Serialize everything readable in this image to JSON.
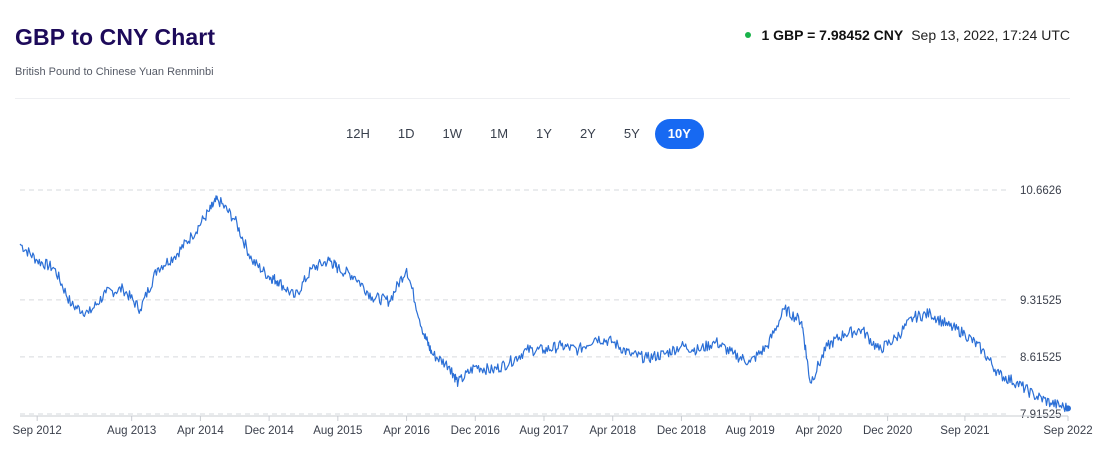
{
  "header": {
    "title": "GBP to CNY Chart",
    "subtitle": "British Pound to Chinese Yuan Renminbi",
    "rate": "1 GBP = 7.98452 CNY",
    "timestamp": "Sep 13, 2022, 17:24 UTC",
    "live_color": "#19b34a"
  },
  "range_tabs": [
    {
      "label": "12H",
      "active": false
    },
    {
      "label": "1D",
      "active": false
    },
    {
      "label": "1W",
      "active": false
    },
    {
      "label": "1M",
      "active": false
    },
    {
      "label": "1Y",
      "active": false
    },
    {
      "label": "2Y",
      "active": false
    },
    {
      "label": "5Y",
      "active": false
    },
    {
      "label": "10Y",
      "active": true
    }
  ],
  "chart_data": {
    "type": "line",
    "line_color": "#2b6fd6",
    "y_ticks": [
      "10.6626",
      "9.31525",
      "8.61525",
      "7.91525"
    ],
    "y_tick_values": [
      10.6626,
      9.31525,
      8.61525,
      7.91525
    ],
    "ylim": [
      7.91525,
      10.6626
    ],
    "grid": true,
    "x_tick_labels": [
      "Sep 2012",
      "Aug 2013",
      "Apr 2014",
      "Dec 2014",
      "Aug 2015",
      "Apr 2016",
      "Dec 2016",
      "Aug 2017",
      "Apr 2018",
      "Dec 2018",
      "Aug 2019",
      "Apr 2020",
      "Dec 2020",
      "Sep 2021",
      "Sep 2022"
    ],
    "x_tick_dates": [
      "2012-09",
      "2013-08",
      "2014-04",
      "2014-12",
      "2015-08",
      "2016-04",
      "2016-12",
      "2017-08",
      "2018-04",
      "2018-12",
      "2019-08",
      "2020-04",
      "2020-12",
      "2021-09",
      "2022-09"
    ],
    "x": [
      "2012-07",
      "2012-09",
      "2012-11",
      "2013-01",
      "2013-03",
      "2013-05",
      "2013-07",
      "2013-09",
      "2013-11",
      "2014-01",
      "2014-03",
      "2014-05",
      "2014-06",
      "2014-08",
      "2014-10",
      "2014-12",
      "2015-01",
      "2015-03",
      "2015-05",
      "2015-07",
      "2015-08",
      "2015-10",
      "2015-12",
      "2016-02",
      "2016-04",
      "2016-06",
      "2016-07",
      "2016-09",
      "2016-10",
      "2016-12",
      "2017-02",
      "2017-04",
      "2017-06",
      "2017-08",
      "2017-10",
      "2017-12",
      "2018-02",
      "2018-04",
      "2018-06",
      "2018-08",
      "2018-10",
      "2018-12",
      "2019-02",
      "2019-04",
      "2019-06",
      "2019-08",
      "2019-10",
      "2019-12",
      "2020-02",
      "2020-03",
      "2020-05",
      "2020-07",
      "2020-09",
      "2020-11",
      "2021-01",
      "2021-03",
      "2021-05",
      "2021-07",
      "2021-09",
      "2021-11",
      "2022-01",
      "2022-03",
      "2022-05",
      "2022-07",
      "2022-09"
    ],
    "values": [
      10.0,
      9.8,
      9.7,
      9.25,
      9.15,
      9.4,
      9.45,
      9.2,
      9.7,
      9.85,
      10.1,
      10.4,
      10.55,
      10.3,
      9.8,
      9.6,
      9.55,
      9.35,
      9.7,
      9.8,
      9.7,
      9.6,
      9.35,
      9.3,
      9.7,
      8.9,
      8.65,
      8.5,
      8.3,
      8.5,
      8.45,
      8.55,
      8.7,
      8.7,
      8.75,
      8.7,
      8.85,
      8.8,
      8.65,
      8.6,
      8.65,
      8.75,
      8.7,
      8.8,
      8.65,
      8.55,
      8.75,
      9.2,
      9.05,
      8.3,
      8.75,
      8.9,
      8.95,
      8.7,
      8.85,
      9.1,
      9.15,
      9.0,
      8.9,
      8.7,
      8.4,
      8.3,
      8.15,
      8.05,
      7.98452
    ]
  }
}
